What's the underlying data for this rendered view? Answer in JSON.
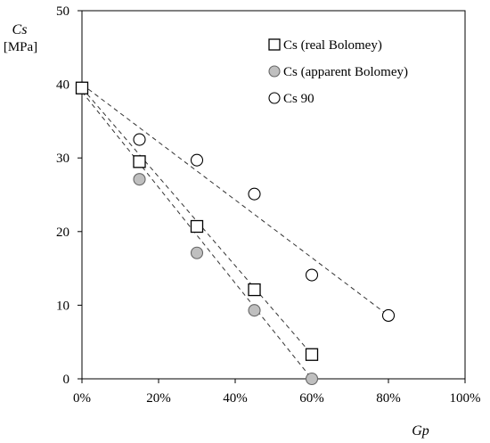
{
  "chart_data": {
    "type": "scatter",
    "xlabel": "Gp",
    "ylabel": "Cs",
    "ylabel_unit": "[MPa]",
    "xlim": [
      0,
      1.0
    ],
    "ylim": [
      0,
      50
    ],
    "x_ticks": [
      0,
      0.2,
      0.4,
      0.6,
      0.8,
      1.0
    ],
    "x_tick_labels": [
      "0%",
      "20%",
      "40%",
      "60%",
      "80%",
      "100%"
    ],
    "y_ticks": [
      0,
      10,
      20,
      30,
      40,
      50
    ],
    "y_tick_labels": [
      "0",
      "10",
      "20",
      "30",
      "40",
      "50"
    ],
    "grid": false,
    "legend_position": "top-right",
    "series": [
      {
        "name": "Cs (real Bolomey)",
        "marker": "open-square",
        "color": "#000000",
        "fill": "#ffffff",
        "x": [
          0,
          0.15,
          0.3,
          0.45,
          0.6
        ],
        "y": [
          39.5,
          29.5,
          20.7,
          12.1,
          3.3
        ],
        "trendline": {
          "x": [
            0,
            0.6
          ],
          "y": [
            39.5,
            3.3
          ]
        }
      },
      {
        "name": "Cs (apparent Bolomey)",
        "marker": "filled-circle",
        "color": "#666666",
        "fill": "#bfbfbf",
        "x": [
          0,
          0.15,
          0.3,
          0.45,
          0.6
        ],
        "y": [
          39.5,
          27.1,
          17.1,
          9.3,
          0
        ],
        "trendline": {
          "x": [
            0,
            0.6
          ],
          "y": [
            39.0,
            0
          ]
        }
      },
      {
        "name": "Cs 90",
        "marker": "open-circle",
        "color": "#000000",
        "fill": "#ffffff",
        "x": [
          0,
          0.15,
          0.3,
          0.45,
          0.6,
          0.8
        ],
        "y": [
          39.5,
          32.5,
          29.7,
          25.1,
          14.1,
          8.6
        ],
        "trendline": {
          "x": [
            0,
            0.8
          ],
          "y": [
            40.0,
            8.6
          ]
        }
      }
    ]
  }
}
